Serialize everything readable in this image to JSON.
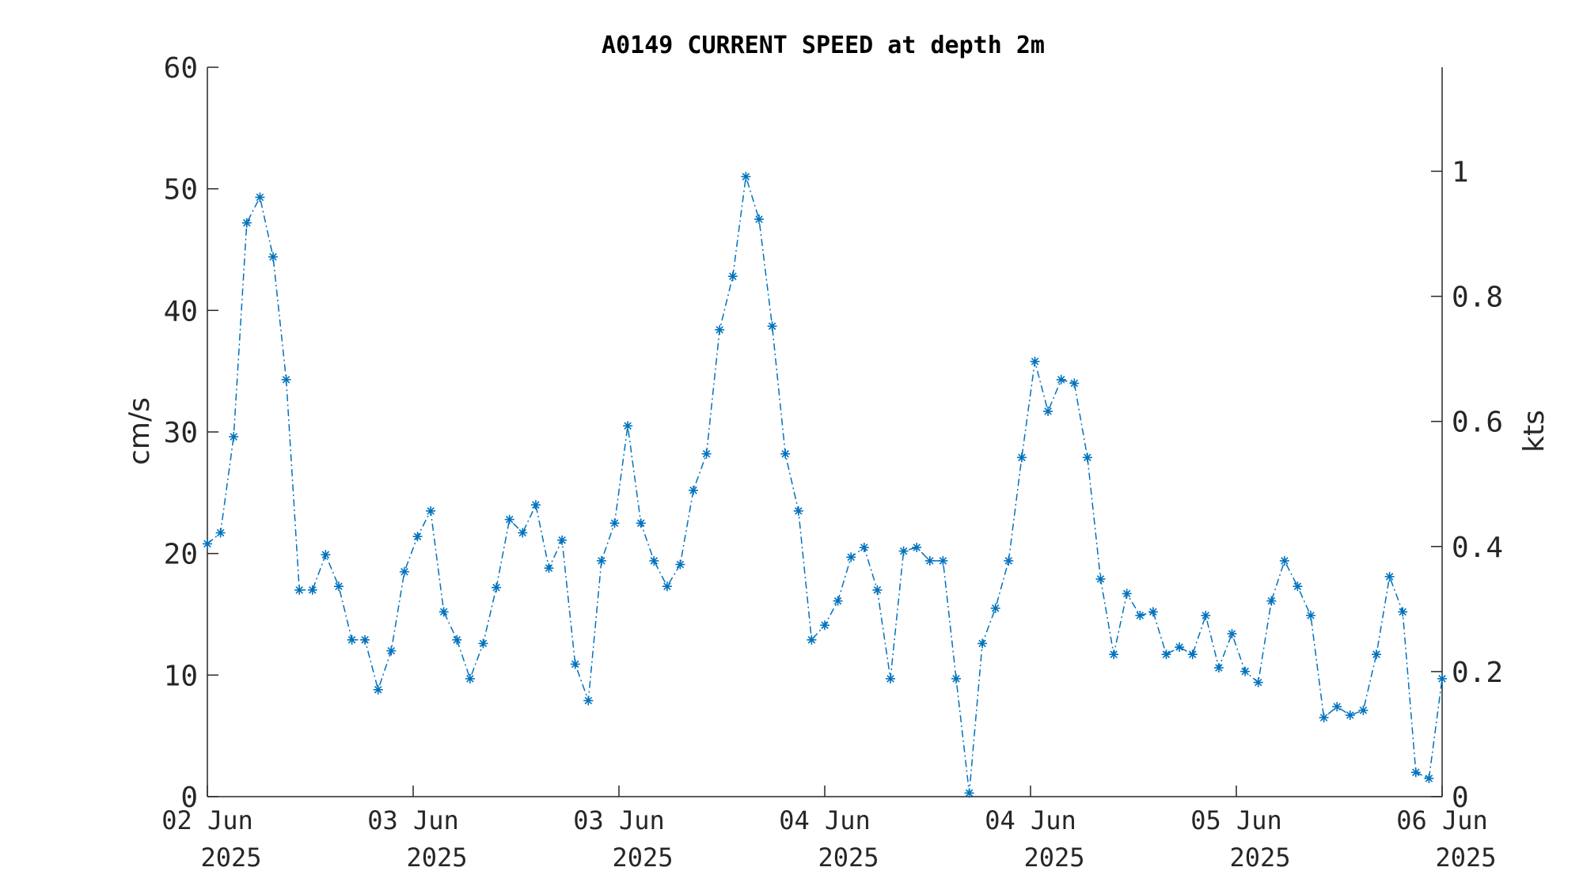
{
  "chart_data": {
    "type": "line",
    "title": "A0149 CURRENT SPEED at depth 2m",
    "ylabel": "cm/s",
    "y2label": "kts",
    "ylim": [
      0,
      60
    ],
    "y2lim": [
      0,
      1.1663
    ],
    "yticks": [
      0,
      10,
      20,
      30,
      40,
      50,
      60
    ],
    "y2ticks": [
      0,
      0.2,
      0.4,
      0.6,
      0.8,
      1
    ],
    "y2ticklabels": [
      "0",
      "0.2",
      "0.4",
      "0.6",
      "0.8",
      "1"
    ],
    "xtick_labels": [
      {
        "day": "02 Jun",
        "year": "2025"
      },
      {
        "day": "03 Jun",
        "year": "2025"
      },
      {
        "day": "03 Jun",
        "year": "2025"
      },
      {
        "day": "04 Jun",
        "year": "2025"
      },
      {
        "day": "04 Jun",
        "year": "2025"
      },
      {
        "day": "05 Jun",
        "year": "2025"
      },
      {
        "day": "06 Jun",
        "year": "2025"
      }
    ],
    "grid": false,
    "legend": "none",
    "marker": "asterisk",
    "line_style": "dash-dot",
    "series": [
      {
        "values": [
          20.8,
          21.7,
          29.6,
          47.2,
          49.3,
          44.4,
          34.3,
          17.0,
          17.0,
          19.9,
          17.3,
          12.9,
          12.9,
          8.8,
          12.0,
          18.5,
          21.4,
          23.5,
          15.2,
          12.9,
          9.7,
          12.6,
          17.2,
          22.8,
          21.7,
          24.0,
          18.8,
          21.1,
          10.9,
          7.9,
          19.4,
          22.5,
          30.5,
          22.5,
          19.4,
          17.3,
          19.1,
          25.2,
          28.2,
          38.4,
          42.8,
          51.0,
          47.5,
          38.7,
          28.2,
          23.5,
          12.9,
          14.1,
          16.1,
          19.7,
          20.5,
          17.0,
          9.7,
          20.2,
          20.5,
          19.4,
          19.4,
          9.7,
          0.3,
          12.6,
          15.5,
          19.4,
          27.9,
          35.8,
          31.7,
          34.3,
          34.0,
          27.9,
          17.9,
          11.7,
          16.7,
          14.9,
          15.2,
          11.7,
          12.3,
          11.7,
          14.9,
          10.6,
          13.4,
          10.3,
          9.4,
          16.1,
          19.4,
          17.3,
          14.9,
          6.5,
          7.4,
          6.7,
          7.1,
          11.7,
          18.1,
          15.2,
          2.0,
          1.5,
          9.7
        ],
        "color": "#0072BD"
      }
    ]
  }
}
